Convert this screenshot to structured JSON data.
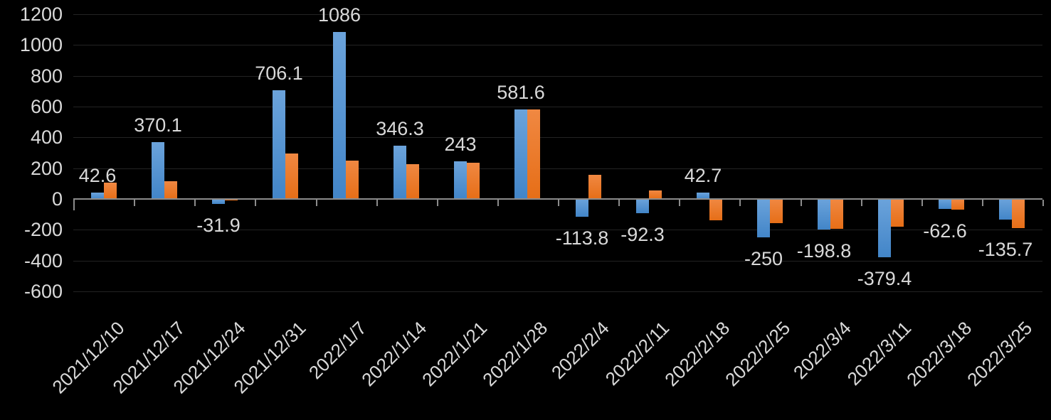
{
  "chart": {
    "background": "#000000",
    "text_color": "#d9d9d9",
    "axis_color": "#8c8c8c",
    "gridline_color": "#232323"
  },
  "chart_data": {
    "type": "bar",
    "title": "",
    "xlabel": "",
    "ylabel": "",
    "grid": true,
    "legend": "none",
    "ylim": [
      -600,
      1200
    ],
    "ytick_step": 200,
    "ytick_labels": [
      "1200",
      "1000",
      "800",
      "600",
      "400",
      "200",
      "0",
      "-200",
      "-400",
      "-600"
    ],
    "categories": [
      "2021/12/10",
      "2021/12/17",
      "2021/12/24",
      "2021/12/31",
      "2022/1/7",
      "2022/1/14",
      "2022/1/21",
      "2022/1/28",
      "2022/2/4",
      "2022/2/11",
      "2022/2/18",
      "2022/2/25",
      "2022/3/4",
      "2022/3/11",
      "2022/3/18",
      "2022/3/25"
    ],
    "series": [
      {
        "name": "blue-series",
        "color_top": "#6ba3db",
        "color_bottom": "#4285c8",
        "values": [
          42.6,
          370.1,
          -31.9,
          706.1,
          1086,
          346.3,
          243,
          581.6,
          -113.8,
          -92.3,
          42.7,
          -250,
          -198.8,
          -379.4,
          -62.6,
          -135.7
        ],
        "data_labels": [
          "42.6",
          "370.1",
          "-31.9",
          "706.1",
          "1086",
          "346.3",
          "243",
          "581.6",
          "-113.8",
          "-92.3",
          "42.7",
          "-250",
          "-198.8",
          "-379.4",
          "-62.6",
          "-135.7"
        ]
      },
      {
        "name": "orange-series",
        "color_top": "#f08842",
        "color_bottom": "#e66e17",
        "values": [
          105,
          115,
          -10,
          295,
          250,
          225,
          235,
          580,
          155,
          55,
          -140,
          -155,
          -195,
          -180,
          -70,
          -190
        ],
        "data_labels": null
      }
    ]
  }
}
